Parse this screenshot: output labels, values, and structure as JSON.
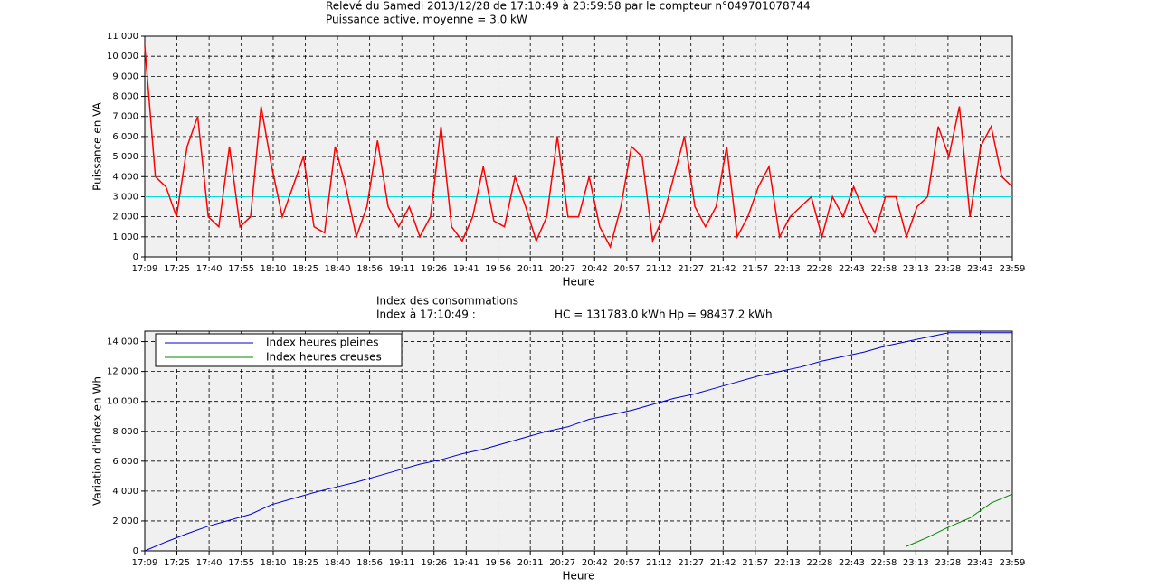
{
  "chart_data": [
    {
      "type": "line",
      "title": "Relevé du Samedi 2013/12/28 de 17:10:49 à 23:59:58 par le compteur n°049701078744",
      "subtitle": "Puissance active, moyenne = 3.0 kW",
      "xlabel": "Heure",
      "ylabel": "Puissance en VA",
      "x": [
        1029,
        1034,
        1039,
        1044,
        1049,
        1054,
        1059,
        1064,
        1069,
        1074,
        1079,
        1084,
        1089,
        1094,
        1099,
        1104,
        1109,
        1114,
        1119,
        1124,
        1129,
        1134,
        1139,
        1144,
        1149,
        1154,
        1159,
        1164,
        1169,
        1174,
        1179,
        1184,
        1189,
        1194,
        1199,
        1204,
        1209,
        1214,
        1219,
        1224,
        1229,
        1234,
        1239,
        1244,
        1249,
        1254,
        1259,
        1264,
        1269,
        1274,
        1279,
        1284,
        1289,
        1294,
        1299,
        1304,
        1309,
        1314,
        1319,
        1324,
        1329,
        1334,
        1339,
        1344,
        1349,
        1354,
        1359,
        1364,
        1369,
        1374,
        1379,
        1384,
        1389,
        1394,
        1399,
        1404,
        1409,
        1414,
        1419,
        1424,
        1429,
        1434,
        1439
      ],
      "series": [
        {
          "name": "Puissance",
          "color": "#ff0000",
          "values": [
            10500,
            4000,
            3500,
            2000,
            5500,
            7000,
            2000,
            1500,
            5500,
            1500,
            2000,
            7500,
            4500,
            2000,
            3500,
            5000,
            1500,
            1200,
            5500,
            3500,
            1000,
            2500,
            5800,
            2500,
            1500,
            2500,
            1000,
            2000,
            6500,
            1500,
            800,
            2000,
            4500,
            1800,
            1500,
            4000,
            2500,
            800,
            2000,
            6000,
            2000,
            2000,
            4000,
            1500,
            500,
            2500,
            5500,
            5000,
            800,
            2000,
            4000,
            6000,
            2500,
            1500,
            2500,
            5500,
            1000,
            2000,
            3500,
            4500,
            1000,
            2000,
            2500,
            3000,
            1000,
            3000,
            2000,
            3500,
            2200,
            1200,
            3000,
            3000,
            1000,
            2500,
            3000,
            6500,
            5000,
            7500,
            2000,
            5500,
            6500,
            4000,
            3500
          ]
        }
      ],
      "reference_line": {
        "value": 3000,
        "color": "#00dddd"
      },
      "xlim": [
        1029,
        1439
      ],
      "xticks": [
        {
          "value": 1029,
          "label": "17:09"
        },
        {
          "value": 1044.2,
          "label": "17:25"
        },
        {
          "value": 1059.4,
          "label": "17:40"
        },
        {
          "value": 1074.6,
          "label": "17:55"
        },
        {
          "value": 1089.7,
          "label": "18:10"
        },
        {
          "value": 1104.9,
          "label": "18:25"
        },
        {
          "value": 1120.1,
          "label": "18:40"
        },
        {
          "value": 1135.3,
          "label": "18:56"
        },
        {
          "value": 1150.5,
          "label": "19:11"
        },
        {
          "value": 1165.7,
          "label": "19:26"
        },
        {
          "value": 1180.9,
          "label": "19:41"
        },
        {
          "value": 1196,
          "label": "19:56"
        },
        {
          "value": 1211.2,
          "label": "20:11"
        },
        {
          "value": 1226.4,
          "label": "20:27"
        },
        {
          "value": 1241.6,
          "label": "20:42"
        },
        {
          "value": 1256.8,
          "label": "20:57"
        },
        {
          "value": 1272,
          "label": "21:12"
        },
        {
          "value": 1287.1,
          "label": "21:27"
        },
        {
          "value": 1302.3,
          "label": "21:42"
        },
        {
          "value": 1317.5,
          "label": "21:57"
        },
        {
          "value": 1332.7,
          "label": "22:13"
        },
        {
          "value": 1347.9,
          "label": "22:28"
        },
        {
          "value": 1363.1,
          "label": "22:43"
        },
        {
          "value": 1378.3,
          "label": "22:58"
        },
        {
          "value": 1393.4,
          "label": "23:13"
        },
        {
          "value": 1408.6,
          "label": "23:28"
        },
        {
          "value": 1423.8,
          "label": "23:43"
        },
        {
          "value": 1439,
          "label": "23:59"
        }
      ],
      "ylim": [
        0,
        11000
      ],
      "yticks": [
        0,
        {
          "value": 1000,
          "label": "1 000"
        },
        {
          "value": 2000,
          "label": "2 000"
        },
        {
          "value": 3000,
          "label": "3 000"
        },
        {
          "value": 4000,
          "label": "4 000"
        },
        {
          "value": 5000,
          "label": "5 000"
        },
        {
          "value": 6000,
          "label": "6 000"
        },
        {
          "value": 7000,
          "label": "7 000"
        },
        {
          "value": 8000,
          "label": "8 000"
        },
        {
          "value": 9000,
          "label": "9 000"
        },
        {
          "value": 10000,
          "label": "10 000"
        },
        {
          "value": 11000,
          "label": "11 000"
        }
      ],
      "grid": true
    },
    {
      "type": "line",
      "title": "Index des consommations",
      "subtitle": "Index à 17:10:49 :",
      "annotation": "HC = 131783.0 kWh  Hp = 98437.2 kWh",
      "xlabel": "Heure",
      "ylabel": "Variation d'index en Wh",
      "x": [
        1029,
        1039,
        1049,
        1059,
        1069,
        1079,
        1089,
        1099,
        1109,
        1119,
        1129,
        1139,
        1149,
        1159,
        1169,
        1179,
        1189,
        1199,
        1209,
        1219,
        1229,
        1239,
        1249,
        1259,
        1269,
        1279,
        1289,
        1299,
        1309,
        1319,
        1329,
        1339,
        1349,
        1359,
        1369,
        1379,
        1389,
        1399,
        1409,
        1419,
        1429,
        1439
      ],
      "series": [
        {
          "name": "Index heures pleines",
          "color": "#0000cc",
          "values": [
            0,
            600,
            1150,
            1650,
            2050,
            2450,
            3100,
            3500,
            3900,
            4250,
            4600,
            5000,
            5400,
            5800,
            6100,
            6500,
            6800,
            7200,
            7600,
            8000,
            8300,
            8800,
            9100,
            9400,
            9800,
            10200,
            10500,
            10900,
            11300,
            11700,
            12000,
            12300,
            12700,
            13000,
            13300,
            13700,
            14000,
            14300,
            14600,
            14600,
            14600,
            14600
          ]
        },
        {
          "name": "Index heures creuses",
          "color": "#008800",
          "values": [
            null,
            null,
            null,
            null,
            null,
            null,
            null,
            null,
            null,
            null,
            null,
            null,
            null,
            null,
            null,
            null,
            null,
            null,
            null,
            null,
            null,
            null,
            null,
            null,
            null,
            null,
            null,
            null,
            null,
            null,
            null,
            null,
            null,
            null,
            null,
            null,
            300,
            900,
            1600,
            2200,
            3200,
            3800
          ]
        }
      ],
      "legend": "upper left",
      "xlim": [
        1029,
        1439
      ],
      "xticks": [
        {
          "value": 1029,
          "label": "17:09"
        },
        {
          "value": 1044.2,
          "label": "17:25"
        },
        {
          "value": 1059.4,
          "label": "17:40"
        },
        {
          "value": 1074.6,
          "label": "17:55"
        },
        {
          "value": 1089.7,
          "label": "18:10"
        },
        {
          "value": 1104.9,
          "label": "18:25"
        },
        {
          "value": 1120.1,
          "label": "18:40"
        },
        {
          "value": 1135.3,
          "label": "18:56"
        },
        {
          "value": 1150.5,
          "label": "19:11"
        },
        {
          "value": 1165.7,
          "label": "19:26"
        },
        {
          "value": 1180.9,
          "label": "19:41"
        },
        {
          "value": 1196,
          "label": "19:56"
        },
        {
          "value": 1211.2,
          "label": "20:11"
        },
        {
          "value": 1226.4,
          "label": "20:27"
        },
        {
          "value": 1241.6,
          "label": "20:42"
        },
        {
          "value": 1256.8,
          "label": "20:57"
        },
        {
          "value": 1272,
          "label": "21:12"
        },
        {
          "value": 1287.1,
          "label": "21:27"
        },
        {
          "value": 1302.3,
          "label": "21:42"
        },
        {
          "value": 1317.5,
          "label": "21:57"
        },
        {
          "value": 1332.7,
          "label": "22:13"
        },
        {
          "value": 1347.9,
          "label": "22:28"
        },
        {
          "value": 1363.1,
          "label": "22:43"
        },
        {
          "value": 1378.3,
          "label": "22:58"
        },
        {
          "value": 1393.4,
          "label": "23:13"
        },
        {
          "value": 1408.6,
          "label": "23:28"
        },
        {
          "value": 1423.8,
          "label": "23:43"
        },
        {
          "value": 1439,
          "label": "23:59"
        }
      ],
      "ylim": [
        0,
        14700
      ],
      "yticks": [
        0,
        {
          "value": 2000,
          "label": "2 000"
        },
        {
          "value": 4000,
          "label": "4 000"
        },
        {
          "value": 6000,
          "label": "6 000"
        },
        {
          "value": 8000,
          "label": "8 000"
        },
        {
          "value": 10000,
          "label": "10 000"
        },
        {
          "value": 12000,
          "label": "12 000"
        },
        {
          "value": 14000,
          "label": "14 000"
        }
      ],
      "grid": true
    }
  ]
}
